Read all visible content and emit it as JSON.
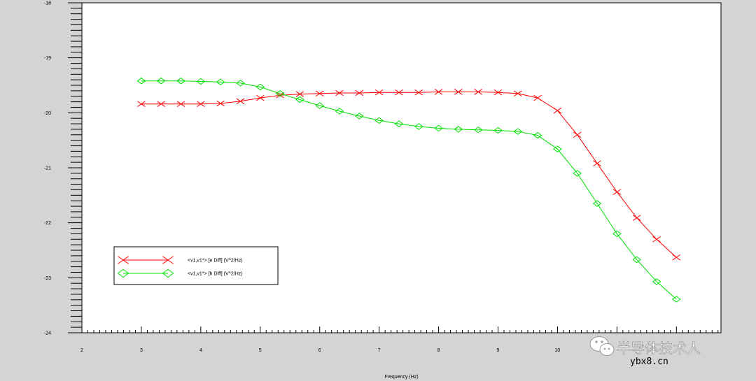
{
  "chart_data": {
    "type": "line",
    "title": "",
    "xlabel": "Frequency (Hz)",
    "ylabel": "",
    "xlim": [
      2,
      12.75
    ],
    "ylim": [
      -24,
      -18
    ],
    "x_ticks": [
      2,
      3,
      4,
      5,
      6,
      7,
      8,
      9,
      10
    ],
    "y_ticks": [
      -24,
      -23,
      -22,
      -21,
      -20,
      -19,
      -18
    ],
    "grid": false,
    "legend_position": "lower-left",
    "series": [
      {
        "name": "<v1,v1*> [e Diff] (V^2/Hz)",
        "color": "#ff0000",
        "marker": "x",
        "x": [
          3,
          3.333,
          3.667,
          4,
          4.333,
          4.667,
          5,
          5.333,
          5.667,
          6,
          6.333,
          6.667,
          7,
          7.333,
          7.667,
          8,
          8.333,
          8.667,
          9,
          9.333,
          9.667,
          10,
          10.333,
          10.667,
          11,
          11.333,
          11.667,
          12
        ],
        "y": [
          -19.84,
          -19.84,
          -19.84,
          -19.84,
          -19.83,
          -19.79,
          -19.73,
          -19.68,
          -19.66,
          -19.65,
          -19.64,
          -19.64,
          -19.63,
          -19.63,
          -19.63,
          -19.62,
          -19.62,
          -19.62,
          -19.63,
          -19.65,
          -19.73,
          -19.96,
          -20.4,
          -20.92,
          -21.44,
          -21.91,
          -22.3,
          -22.63
        ]
      },
      {
        "name": "<v1,v1*> [h Diff] (V^2/Hz)",
        "color": "#00e000",
        "marker": "diamond",
        "x": [
          3,
          3.333,
          3.667,
          4,
          4.333,
          4.667,
          5,
          5.333,
          5.667,
          6,
          6.333,
          6.667,
          7,
          7.333,
          7.667,
          8,
          8.333,
          8.667,
          9,
          9.333,
          9.667,
          10,
          10.333,
          10.667,
          11,
          11.333,
          11.667,
          12
        ],
        "y": [
          -19.42,
          -19.42,
          -19.42,
          -19.43,
          -19.44,
          -19.46,
          -19.53,
          -19.65,
          -19.76,
          -19.87,
          -19.97,
          -20.06,
          -20.14,
          -20.2,
          -20.25,
          -20.28,
          -20.3,
          -20.31,
          -20.32,
          -20.34,
          -20.41,
          -20.66,
          -21.1,
          -21.65,
          -22.2,
          -22.67,
          -23.07,
          -23.39
        ]
      }
    ]
  },
  "watermark": {
    "text": "半导体技术人",
    "url": "ybx8.cn"
  }
}
